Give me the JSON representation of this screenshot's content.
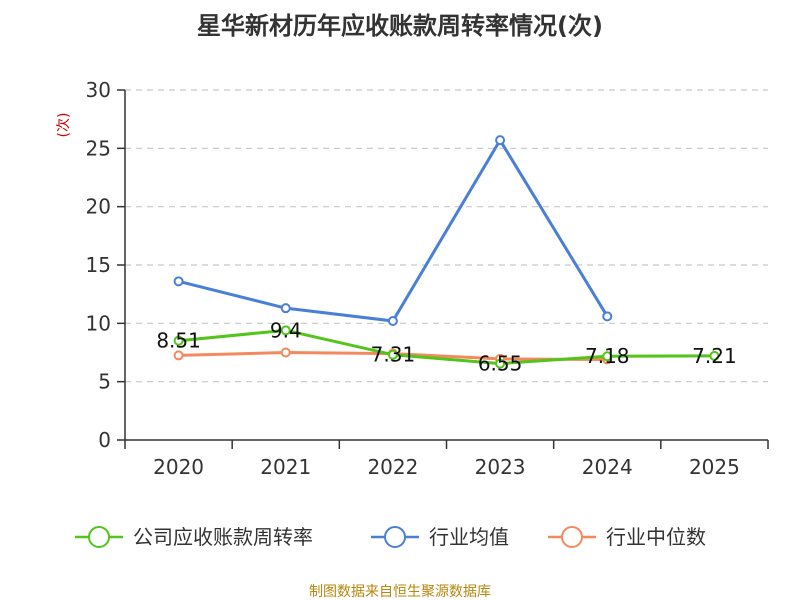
{
  "chart_data": {
    "type": "line",
    "title": "星华新材历年应收账款周转率情况(次)",
    "ylabel": "(次)",
    "xlabel": "",
    "categories": [
      "2020",
      "2021",
      "2022",
      "2023",
      "2024",
      "2025"
    ],
    "ylim": [
      0,
      30
    ],
    "yticks": [
      0,
      5,
      10,
      15,
      20,
      25,
      30
    ],
    "grid": "horizontal dashed",
    "legend_position": "bottom",
    "series": [
      {
        "name": "公司应收账款周转率",
        "color": "#52c41a",
        "values": [
          8.51,
          9.4,
          7.31,
          6.55,
          7.18,
          7.21
        ],
        "data_labels": [
          "8.51",
          "9.4",
          "7.31",
          "6.55",
          "7.18",
          "7.21"
        ]
      },
      {
        "name": "行业均值",
        "color": "#4a7fd8",
        "values": [
          13.6,
          11.3,
          10.2,
          25.7,
          10.6,
          null
        ],
        "data_labels": []
      },
      {
        "name": "行业中位数",
        "color": "#f4895f",
        "values": [
          7.25,
          7.5,
          7.4,
          6.95,
          6.9,
          null
        ],
        "data_labels": []
      }
    ]
  },
  "source": "制图数据来自恒生聚源数据库"
}
